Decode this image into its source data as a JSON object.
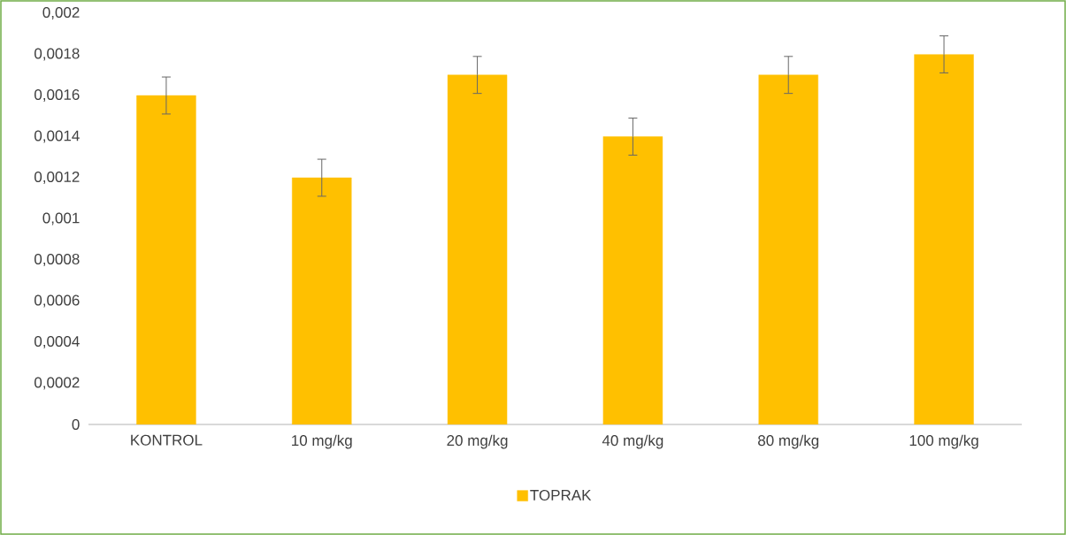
{
  "chart_data": {
    "type": "bar",
    "categories": [
      "KONTROL",
      "10 mg/kg",
      "20 mg/kg",
      "40 mg/kg",
      "80 mg/kg",
      "100 mg/kg"
    ],
    "series": [
      {
        "name": "TOPRAK",
        "color": "#ffc000",
        "values": [
          0.0016,
          0.0012,
          0.0017,
          0.0014,
          0.0017,
          0.0018
        ],
        "errors": [
          9e-05,
          9e-05,
          9e-05,
          9e-05,
          9e-05,
          9e-05
        ]
      }
    ],
    "ylim": [
      0,
      0.002
    ],
    "yticks": [
      0,
      {
        "value": 0.0002,
        "label": "0,0002"
      },
      {
        "value": 0.0004,
        "label": "0,0004"
      },
      {
        "value": 0.0006,
        "label": "0,0006"
      },
      {
        "value": 0.0008,
        "label": "0,0008"
      },
      {
        "value": 0.001,
        "label": "0,001"
      },
      {
        "value": 0.0012,
        "label": "0,0012"
      },
      {
        "value": 0.0014,
        "label": "0,0014"
      },
      {
        "value": 0.0016,
        "label": "0,0016"
      },
      {
        "value": 0.0018,
        "label": "0,0018"
      },
      {
        "value": 0.002,
        "label": "0,002"
      }
    ],
    "grid": false,
    "legend": "bottom"
  }
}
